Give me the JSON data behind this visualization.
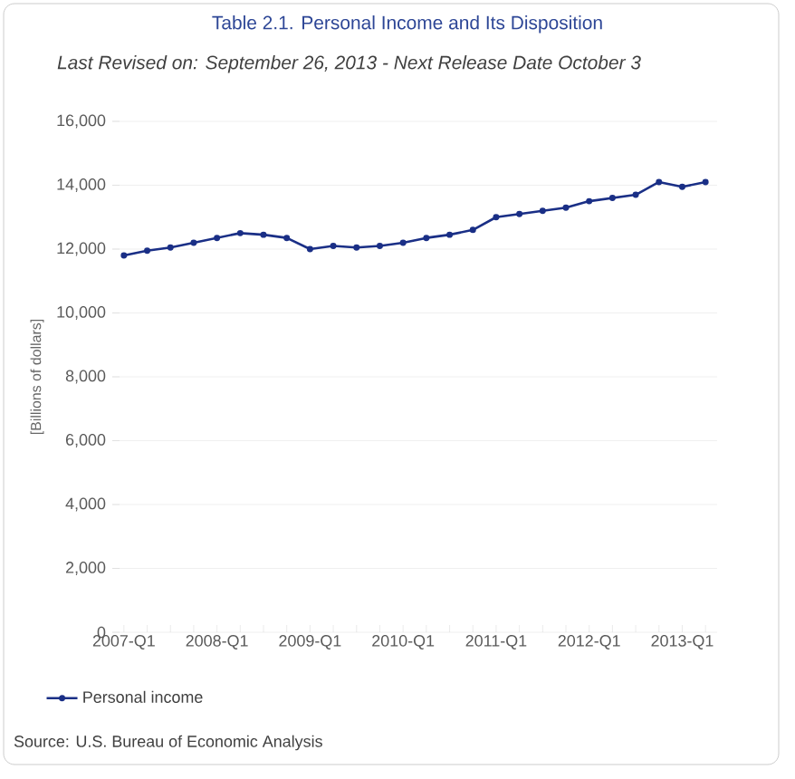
{
  "chart_data": {
    "type": "line",
    "title": "Table 2.1. Personal Income and Its Disposition",
    "subtitle": "Last Revised on: September 26, 2013 - Next Release Date October 3",
    "ylabel": "[Billions of dollars]",
    "categories": [
      "2007-Q1",
      null,
      null,
      null,
      "2008-Q1",
      null,
      null,
      null,
      "2009-Q1",
      null,
      null,
      null,
      "2010-Q1",
      null,
      null,
      null,
      "2011-Q1",
      null,
      null,
      null,
      "2012-Q1",
      null,
      null,
      null,
      "2013-Q1",
      null
    ],
    "series": [
      {
        "name": "Personal income",
        "color": "#1a2f86",
        "values": [
          11800,
          11950,
          12050,
          12200,
          12350,
          12500,
          12450,
          12350,
          12000,
          12100,
          12050,
          12100,
          12200,
          12350,
          12450,
          12600,
          13000,
          13100,
          13200,
          13300,
          13500,
          13600,
          13700,
          14100,
          13950,
          14100
        ]
      }
    ],
    "ylim": [
      0,
      16000
    ],
    "yticks": [
      {
        "value": 0,
        "label": "0"
      },
      {
        "value": 2000,
        "label": "2,000"
      },
      {
        "value": 4000,
        "label": "4,000"
      },
      {
        "value": 6000,
        "label": "6,000"
      },
      {
        "value": 8000,
        "label": "8,000"
      },
      {
        "value": 10000,
        "label": "10,000"
      },
      {
        "value": 12000,
        "label": "12,000"
      },
      {
        "value": 14000,
        "label": "14,000"
      },
      {
        "value": 16000,
        "label": "16,000"
      }
    ],
    "grid": "y",
    "legend": "bottom left",
    "marker": "circle",
    "line_style": "solid",
    "annotations": [
      "Source: U.S. Bureau of Economic Analysis"
    ]
  }
}
